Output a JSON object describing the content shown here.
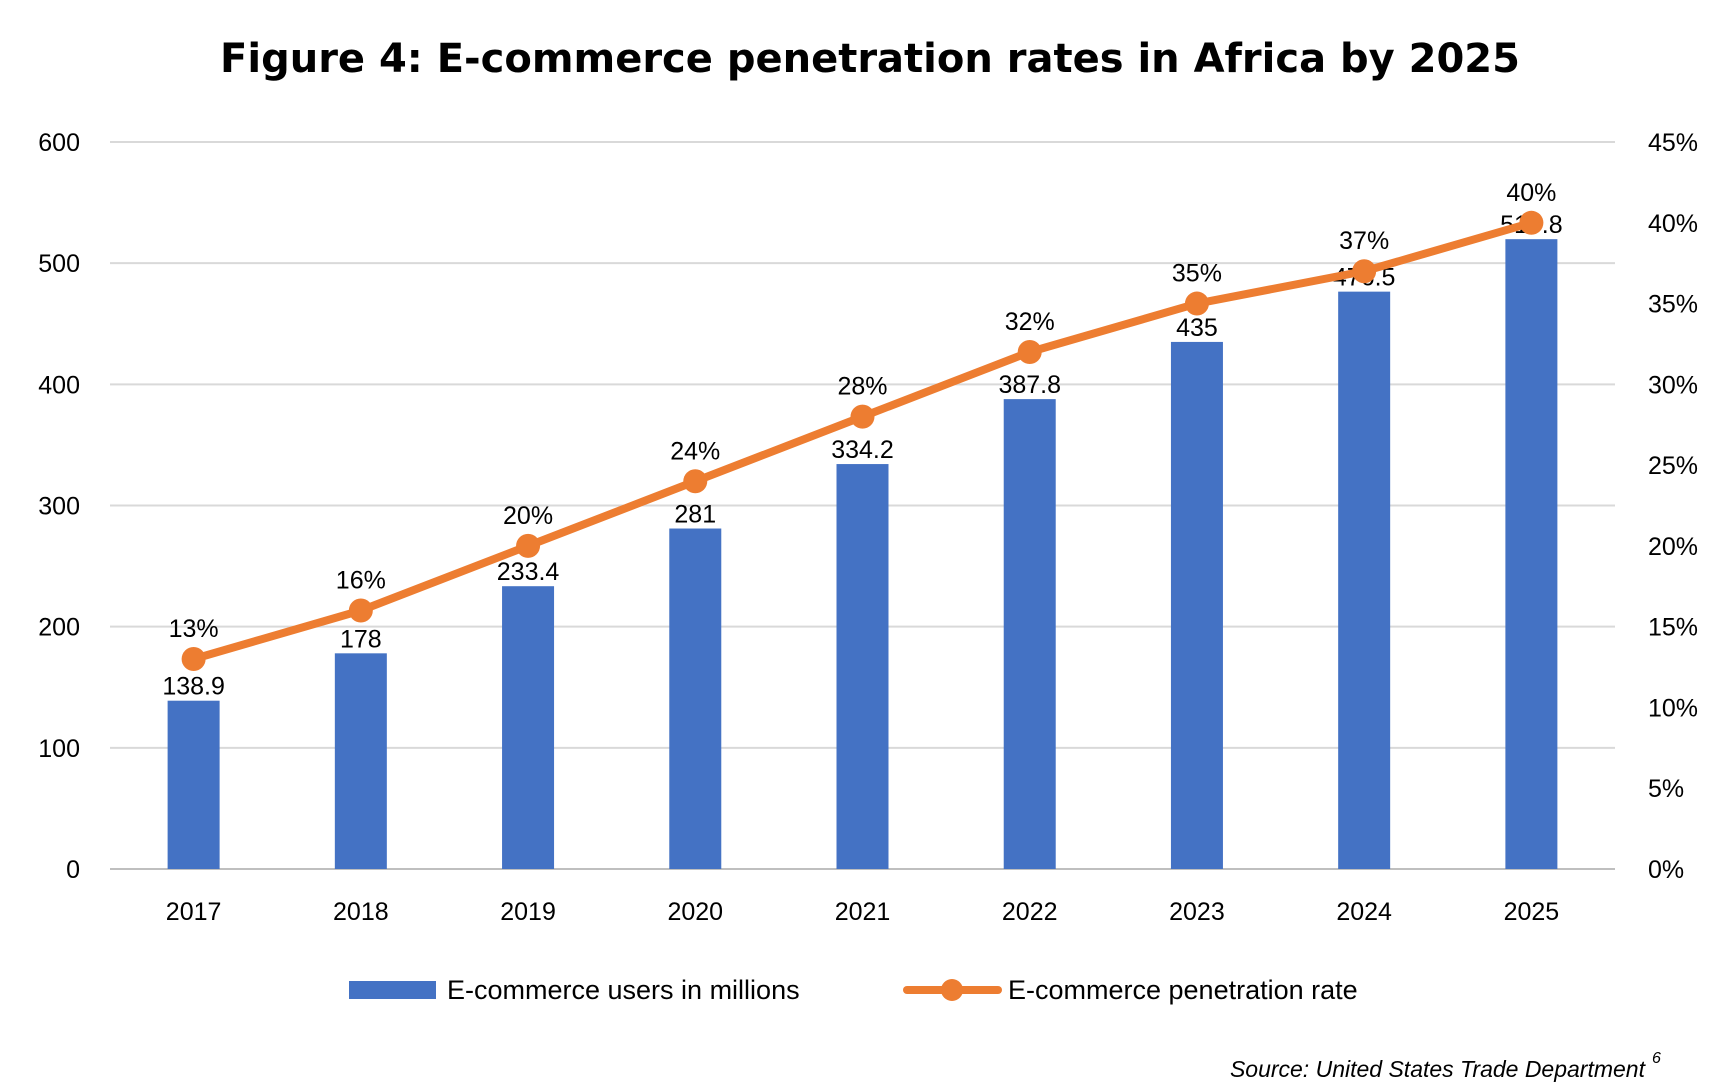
{
  "chart_data": {
    "type": "bar",
    "title": "Figure 4: E-commerce penetration rates in Africa by 2025",
    "categories": [
      "2017",
      "2018",
      "2019",
      "2020",
      "2021",
      "2022",
      "2023",
      "2024",
      "2025"
    ],
    "series": [
      {
        "name": "E-commerce users in millions",
        "type": "bar",
        "axis": "left",
        "values": [
          138.9,
          178,
          233.4,
          281,
          334.2,
          387.8,
          435,
          476.5,
          519.8
        ],
        "labels": [
          "138.9",
          "178",
          "233.4",
          "281",
          "334.2",
          "387.8",
          "435",
          "476.5",
          "519.8"
        ],
        "color": "#4472C4"
      },
      {
        "name": "E-commerce penetration rate",
        "type": "line",
        "axis": "right",
        "values": [
          13,
          16,
          20,
          24,
          28,
          32,
          35,
          37,
          40
        ],
        "labels": [
          "13%",
          "16%",
          "20%",
          "24%",
          "28%",
          "32%",
          "35%",
          "37%",
          "40%"
        ],
        "color": "#ED7D31"
      }
    ],
    "y_left": {
      "ylim": [
        0,
        600
      ],
      "ticks": [
        "0",
        "100",
        "200",
        "300",
        "400",
        "500",
        "600"
      ]
    },
    "y_right": {
      "ylim": [
        0,
        45
      ],
      "ticks": [
        "0%",
        "5%",
        "10%",
        "15%",
        "20%",
        "25%",
        "30%",
        "35%",
        "40%",
        "45%"
      ]
    },
    "grid": true,
    "legend_position": "bottom",
    "source": "Source: United States Trade Department",
    "source_note": "6"
  }
}
